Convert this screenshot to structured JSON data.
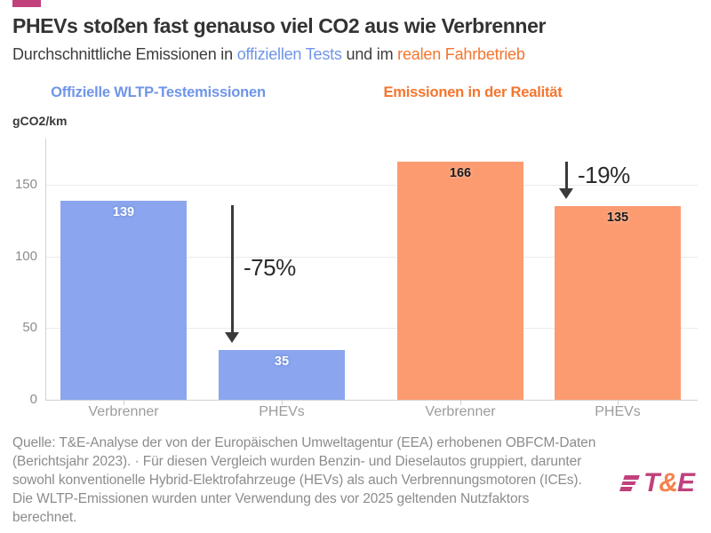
{
  "colors": {
    "accent_pink": "#C0417B",
    "text_blue": "#6F95E8",
    "text_orange": "#F4752E",
    "bar_blue": "#8BA6EF",
    "bar_orange": "#FC9B70",
    "logo_pink": "#C0417B",
    "logo_orange": "#F5824C"
  },
  "header": {
    "title": "PHEVs stoßen fast genauso viel CO2 aus wie Verbrenner",
    "subtitle_prefix": "Durchschnittliche Emissionen in ",
    "subtitle_highlight_blue": "offiziellen Tests",
    "subtitle_middle": " und im ",
    "subtitle_highlight_orange": "realen Fahrbetrieb"
  },
  "chart_data": {
    "type": "bar",
    "unit_label": "gCO2/km",
    "ylim": [
      0,
      182
    ],
    "yticks": [
      0,
      50,
      100,
      150
    ],
    "grid": true,
    "panels": [
      {
        "label": "Offizielle WLTP-Testemissionen",
        "categories": [
          "Verbrenner",
          "PHEVs"
        ],
        "values": [
          139,
          35
        ],
        "annotation": "-75%"
      },
      {
        "label": "Emissionen in der Realität",
        "categories": [
          "Verbrenner",
          "PHEVs"
        ],
        "values": [
          166,
          135
        ],
        "annotation": "-19%"
      }
    ]
  },
  "footer": {
    "lines": [
      "Quelle: T&E-Analyse der von der Europäischen Umweltagentur (EEA) erhobenen OBFCM-Daten",
      "(Berichtsjahr 2023). · Für diesen Vergleich wurden Benzin- und Dieselautos gruppiert, darunter",
      "sowohl konventionelle Hybrid-Elektrofahrzeuge (HEVs) als auch Verbrennungsmotoren (ICEs).",
      "Die WLTP-Emissionen wurden unter Verwendung des vor 2025 geltenden Nutzfaktors",
      "berechnet."
    ]
  },
  "logo": {
    "t": "T",
    "amp": "&",
    "e": "E"
  }
}
